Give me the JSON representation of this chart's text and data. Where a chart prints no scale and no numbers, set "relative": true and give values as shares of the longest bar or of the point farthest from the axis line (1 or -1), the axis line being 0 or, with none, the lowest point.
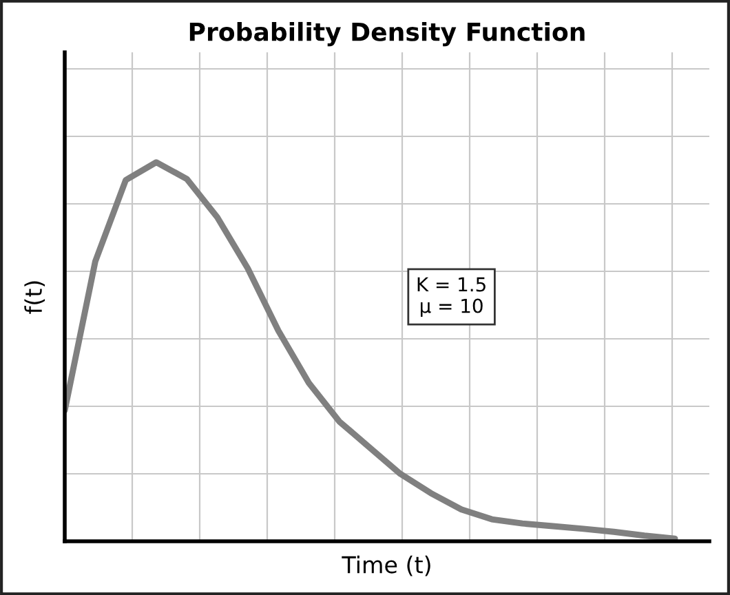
{
  "chart_data": {
    "type": "line",
    "title": "Probability Density Function",
    "xlabel": "Time (t)",
    "ylabel": "f(t)",
    "relative": true,
    "grid": true,
    "marker": "none",
    "line_style": "solid",
    "categories": [
      null,
      null,
      null,
      null,
      null,
      null,
      null,
      null,
      null,
      null,
      null,
      null,
      null,
      null,
      null,
      null,
      null,
      null,
      null,
      null,
      null
    ],
    "series": [
      {
        "color": "#808080",
        "values": [
          0.345,
          0.738,
          0.953,
          1.0,
          0.956,
          0.855,
          0.72,
          0.556,
          0.418,
          0.316,
          0.247,
          0.178,
          0.127,
          0.084,
          0.058,
          0.047,
          0.04,
          0.033,
          0.025,
          0.015,
          0.007
        ]
      }
    ],
    "annotations": [
      {
        "text": "K = 1.5\nμ = 10"
      }
    ]
  }
}
